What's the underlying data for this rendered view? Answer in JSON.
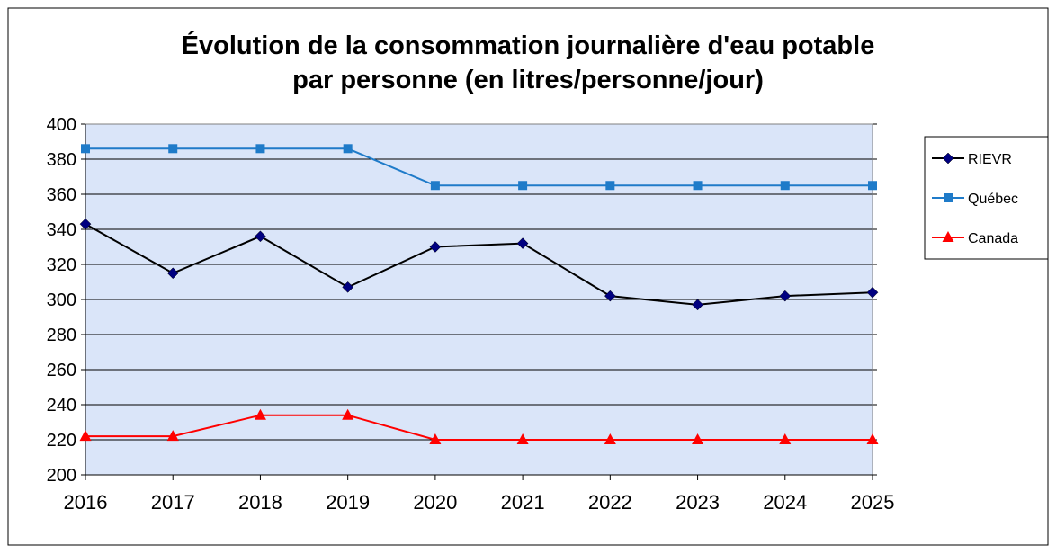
{
  "chart_data": {
    "type": "line",
    "title": "Évolution de la consommation journalière d'eau potable\npar personne (en litres/personne/jour)",
    "categories": [
      "2016",
      "2017",
      "2018",
      "2019",
      "2020",
      "2021",
      "2022",
      "2023",
      "2024",
      "2025"
    ],
    "series": [
      {
        "name": "RIEVR",
        "color": "#000000",
        "marker": "diamond",
        "marker_color": "#000080",
        "values": [
          343,
          315,
          336,
          307,
          330,
          332,
          302,
          297,
          302,
          304
        ]
      },
      {
        "name": "Québec",
        "color": "#1f7bc9",
        "marker": "square",
        "marker_color": "#1f7bc9",
        "values": [
          386,
          386,
          386,
          386,
          365,
          365,
          365,
          365,
          365,
          365
        ]
      },
      {
        "name": "Canada",
        "color": "#ff0000",
        "marker": "triangle",
        "marker_color": "#ff0000",
        "values": [
          222,
          222,
          234,
          234,
          220,
          220,
          220,
          220,
          220,
          220
        ]
      }
    ],
    "ylim": [
      200,
      400
    ],
    "yticks": [
      200,
      220,
      240,
      260,
      280,
      300,
      320,
      340,
      360,
      380,
      400
    ],
    "grid": true,
    "plot_background": "#dae5f9",
    "legend": "right"
  }
}
